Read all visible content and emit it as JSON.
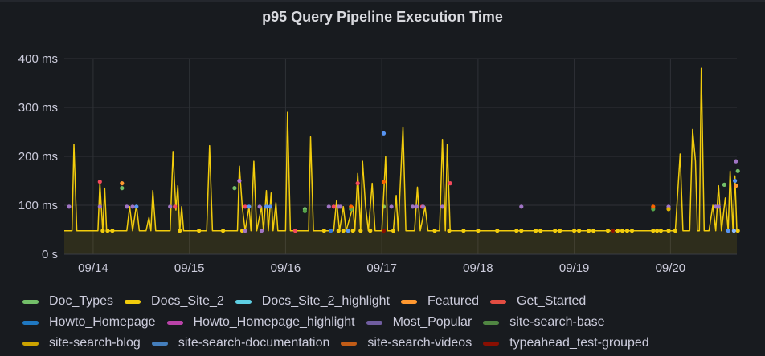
{
  "panel": {
    "title": "p95 Query Pipeline Execution Time"
  },
  "chart_data": {
    "type": "line",
    "title": "p95 Query Pipeline Execution Time",
    "xlabel": "",
    "ylabel": "",
    "ylim": [
      0,
      400
    ],
    "yticks": [
      {
        "value": 0,
        "label": "0 s"
      },
      {
        "value": 100,
        "label": "100 ms"
      },
      {
        "value": 200,
        "label": "200 ms"
      },
      {
        "value": 300,
        "label": "300 ms"
      },
      {
        "value": 400,
        "label": "400 ms"
      }
    ],
    "xlim": [
      13.7,
      20.69
    ],
    "xticks": [
      {
        "value": 14,
        "label": "09/14"
      },
      {
        "value": 15,
        "label": "09/15"
      },
      {
        "value": 16,
        "label": "09/16"
      },
      {
        "value": 17,
        "label": "09/17"
      },
      {
        "value": 18,
        "label": "09/18"
      },
      {
        "value": 19,
        "label": "09/19"
      },
      {
        "value": 20,
        "label": "09/20"
      }
    ],
    "grid": true,
    "legend_position": "bottom",
    "series": [
      {
        "name": "Doc_Types",
        "color": "#73bf69",
        "points": [
          [
            14.3,
            135
          ],
          [
            15.47,
            135
          ],
          [
            16.2,
            92
          ],
          [
            17.02,
            97
          ],
          [
            20.56,
            142
          ],
          [
            20.7,
            170
          ]
        ]
      },
      {
        "name": "Docs_Site_2",
        "color": "#f2cc0c",
        "line": [
          [
            13.7,
            48
          ],
          [
            13.78,
            48
          ],
          [
            13.8,
            225
          ],
          [
            13.83,
            48
          ],
          [
            14.0,
            48
          ],
          [
            14.05,
            48
          ],
          [
            14.07,
            145
          ],
          [
            14.1,
            48
          ],
          [
            14.12,
            135
          ],
          [
            14.14,
            48
          ],
          [
            14.35,
            48
          ],
          [
            14.38,
            97
          ],
          [
            14.41,
            48
          ],
          [
            14.45,
            100
          ],
          [
            14.48,
            48
          ],
          [
            14.55,
            48
          ],
          [
            14.58,
            75
          ],
          [
            14.6,
            48
          ],
          [
            14.62,
            130
          ],
          [
            14.65,
            48
          ],
          [
            14.8,
            48
          ],
          [
            14.83,
            210
          ],
          [
            14.86,
            90
          ],
          [
            14.88,
            140
          ],
          [
            14.9,
            48
          ],
          [
            14.92,
            97
          ],
          [
            14.94,
            48
          ],
          [
            15.18,
            48
          ],
          [
            15.21,
            222
          ],
          [
            15.24,
            48
          ],
          [
            15.5,
            48
          ],
          [
            15.52,
            180
          ],
          [
            15.55,
            97
          ],
          [
            15.58,
            48
          ],
          [
            15.62,
            97
          ],
          [
            15.64,
            48
          ],
          [
            15.67,
            190
          ],
          [
            15.7,
            48
          ],
          [
            15.75,
            97
          ],
          [
            15.77,
            48
          ],
          [
            15.8,
            130
          ],
          [
            15.82,
            48
          ],
          [
            15.85,
            125
          ],
          [
            15.87,
            48
          ],
          [
            15.9,
            105
          ],
          [
            15.92,
            48
          ],
          [
            16.0,
            48
          ],
          [
            16.02,
            290
          ],
          [
            16.05,
            48
          ],
          [
            16.24,
            48
          ],
          [
            16.26,
            240
          ],
          [
            16.29,
            48
          ],
          [
            16.5,
            48
          ],
          [
            16.53,
            110
          ],
          [
            16.56,
            48
          ],
          [
            16.6,
            97
          ],
          [
            16.63,
            48
          ],
          [
            16.7,
            97
          ],
          [
            16.72,
            48
          ],
          [
            16.75,
            165
          ],
          [
            16.78,
            48
          ],
          [
            16.8,
            190
          ],
          [
            16.83,
            100
          ],
          [
            16.86,
            48
          ],
          [
            16.9,
            145
          ],
          [
            16.93,
            48
          ],
          [
            17.0,
            48
          ],
          [
            17.04,
            200
          ],
          [
            17.06,
            48
          ],
          [
            17.12,
            48
          ],
          [
            17.15,
            120
          ],
          [
            17.17,
            48
          ],
          [
            17.22,
            260
          ],
          [
            17.25,
            48
          ],
          [
            17.34,
            48
          ],
          [
            17.37,
            137
          ],
          [
            17.4,
            48
          ],
          [
            17.45,
            97
          ],
          [
            17.48,
            48
          ],
          [
            17.6,
            48
          ],
          [
            17.63,
            235
          ],
          [
            17.66,
            48
          ],
          [
            17.68,
            225
          ],
          [
            17.71,
            48
          ],
          [
            17.78,
            48
          ],
          [
            18.0,
            48
          ],
          [
            18.5,
            48
          ],
          [
            19.0,
            48
          ],
          [
            19.5,
            48
          ],
          [
            19.9,
            48
          ],
          [
            20.05,
            48
          ],
          [
            20.1,
            205
          ],
          [
            20.13,
            48
          ],
          [
            20.2,
            48
          ],
          [
            20.23,
            255
          ],
          [
            20.26,
            190
          ],
          [
            20.28,
            48
          ],
          [
            20.3,
            48
          ],
          [
            20.32,
            380
          ],
          [
            20.35,
            48
          ],
          [
            20.4,
            48
          ],
          [
            20.44,
            100
          ],
          [
            20.47,
            48
          ],
          [
            20.5,
            140
          ],
          [
            20.53,
            48
          ],
          [
            20.57,
            115
          ],
          [
            20.6,
            48
          ],
          [
            20.62,
            170
          ],
          [
            20.65,
            48
          ],
          [
            20.67,
            160
          ],
          [
            20.69,
            48
          ]
        ],
        "points": [
          [
            14.1,
            48
          ],
          [
            14.15,
            48
          ],
          [
            14.2,
            48
          ],
          [
            14.9,
            48
          ],
          [
            15.1,
            48
          ],
          [
            15.35,
            48
          ],
          [
            15.55,
            48
          ],
          [
            16.4,
            48
          ],
          [
            16.55,
            48
          ],
          [
            16.6,
            48
          ],
          [
            16.7,
            48
          ],
          [
            16.78,
            48
          ],
          [
            16.88,
            48
          ],
          [
            17.12,
            48
          ],
          [
            17.55,
            48
          ],
          [
            17.7,
            48
          ],
          [
            17.85,
            48
          ],
          [
            18.0,
            48
          ],
          [
            18.2,
            48
          ],
          [
            18.4,
            48
          ],
          [
            18.45,
            48
          ],
          [
            18.6,
            48
          ],
          [
            18.65,
            48
          ],
          [
            18.8,
            48
          ],
          [
            18.85,
            48
          ],
          [
            19.0,
            48
          ],
          [
            19.05,
            48
          ],
          [
            19.15,
            48
          ],
          [
            19.2,
            48
          ],
          [
            19.35,
            48
          ],
          [
            19.4,
            48
          ],
          [
            19.45,
            48
          ],
          [
            19.5,
            48
          ],
          [
            19.55,
            48
          ],
          [
            19.6,
            48
          ],
          [
            19.82,
            48
          ],
          [
            19.86,
            48
          ],
          [
            19.9,
            48
          ],
          [
            19.98,
            48
          ],
          [
            20.05,
            48
          ],
          [
            20.7,
            48
          ]
        ]
      },
      {
        "name": "Docs_Site_2_highlight",
        "color": "#8ab8ff",
        "points": [
          [
            20.66,
            48
          ]
        ]
      },
      {
        "name": "Featured",
        "color": "#ff9830",
        "points": [
          [
            14.3,
            145
          ],
          [
            20.68,
            140
          ]
        ]
      },
      {
        "name": "Get_Started",
        "color": "#f2495c",
        "points": [
          [
            14.07,
            148
          ],
          [
            14.85,
            97
          ],
          [
            15.58,
            97
          ],
          [
            16.1,
            48
          ],
          [
            16.75,
            145
          ],
          [
            16.5,
            97
          ],
          [
            17.71,
            145
          ],
          [
            17.42,
            97
          ]
        ]
      },
      {
        "name": "Howto_Homepage",
        "color": "#5794f2",
        "points": [
          [
            14.45,
            97
          ],
          [
            15.62,
            97
          ],
          [
            15.8,
            97
          ],
          [
            15.84,
            97
          ],
          [
            16.65,
            48
          ],
          [
            17.02,
            247
          ],
          [
            20.6,
            48
          ],
          [
            20.67,
            150
          ]
        ]
      },
      {
        "name": "Howto_Homepage_highlight",
        "color": "#b877d9",
        "points": [
          [
            15.52,
            150
          ]
        ]
      },
      {
        "name": "Most_Popular",
        "color": "#a074c4",
        "points": [
          [
            13.75,
            97
          ],
          [
            14.07,
            97
          ],
          [
            14.35,
            97
          ],
          [
            14.41,
            97
          ],
          [
            14.8,
            97
          ],
          [
            15.58,
            48
          ],
          [
            15.73,
            97
          ],
          [
            15.75,
            48
          ],
          [
            16.45,
            97
          ],
          [
            16.55,
            97
          ],
          [
            16.57,
            97
          ],
          [
            17.1,
            97
          ],
          [
            17.32,
            97
          ],
          [
            17.36,
            97
          ],
          [
            17.43,
            97
          ],
          [
            17.63,
            97
          ],
          [
            18.45,
            97
          ],
          [
            19.98,
            97
          ],
          [
            20.47,
            97
          ],
          [
            20.5,
            97
          ],
          [
            20.68,
            190
          ]
        ]
      },
      {
        "name": "site-search-base",
        "color": "#56a64b",
        "points": [
          [
            16.2,
            88
          ],
          [
            16.68,
            92
          ],
          [
            19.82,
            92
          ]
        ]
      },
      {
        "name": "site-search-blog",
        "color": "#e0b400",
        "points": [
          [
            19.98,
            92
          ]
        ]
      },
      {
        "name": "site-search-documentation",
        "color": "#3274d9",
        "points": [
          [
            16.47,
            48
          ]
        ]
      },
      {
        "name": "site-search-videos",
        "color": "#fa6400",
        "points": [
          [
            17.02,
            148
          ],
          [
            16.68,
            97
          ],
          [
            19.82,
            97
          ]
        ]
      },
      {
        "name": "typeahead_test-grouped",
        "color": "#890f02",
        "points": [
          [
            17.02,
            48
          ],
          [
            19.4,
            48
          ]
        ]
      }
    ]
  },
  "legend": {
    "rows": [
      [
        {
          "label": "Doc_Types",
          "color": "#73bf69"
        },
        {
          "label": "Docs_Site_2",
          "color": "#f2cc0c"
        },
        {
          "label": "Docs_Site_2_highlight",
          "color": "#5ecfe3"
        },
        {
          "label": "Featured",
          "color": "#ff9830"
        },
        {
          "label": "Get_Started",
          "color": "#e24d42"
        }
      ],
      [
        {
          "label": "Howto_Homepage",
          "color": "#1f78c1"
        },
        {
          "label": "Howto_Homepage_highlight",
          "color": "#ba43a9"
        },
        {
          "label": "Most_Popular",
          "color": "#705da0"
        },
        {
          "label": "site-search-base",
          "color": "#508642"
        }
      ],
      [
        {
          "label": "site-search-blog",
          "color": "#cca300"
        },
        {
          "label": "site-search-documentation",
          "color": "#447ebc"
        },
        {
          "label": "site-search-videos",
          "color": "#c15c17"
        },
        {
          "label": "typeahead_test-grouped",
          "color": "#890f02"
        }
      ]
    ]
  }
}
